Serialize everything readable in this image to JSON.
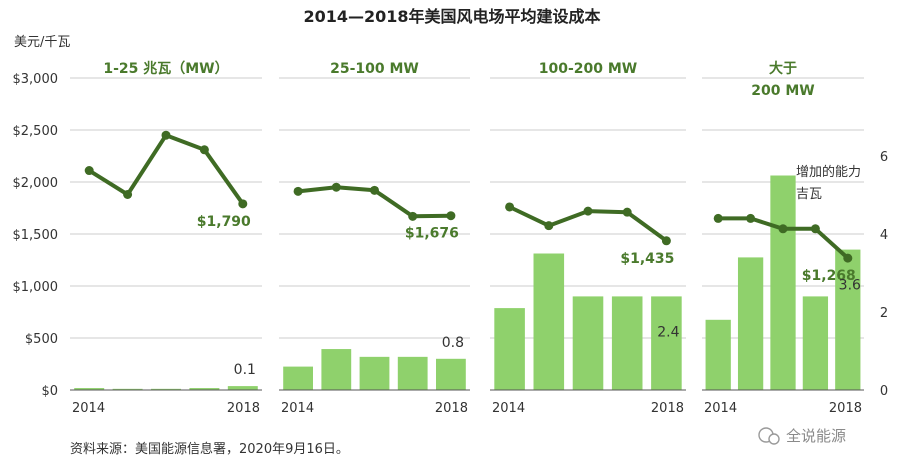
{
  "chart_data": {
    "type": "line",
    "title": "2014—2018年美国风电场平均建设成本",
    "ylabel": "美元/千瓦",
    "y2label": [
      "增加的能力",
      "吉瓦"
    ],
    "source": "资料来源：美国能源信息署，2020年9月16日。",
    "watermark": "全说能源",
    "ylim": [
      0,
      3000
    ],
    "y_ticks": [
      "$0",
      "$500",
      "$1,000",
      "$1,500",
      "$2,000",
      "$2,500",
      "$3,000"
    ],
    "y_tick_values": [
      0,
      500,
      1000,
      1500,
      2000,
      2500,
      3000
    ],
    "y2lim": [
      0,
      8
    ],
    "y2_ticks": [
      "0",
      "2",
      "4",
      "6"
    ],
    "y2_tick_values": [
      0,
      2,
      4,
      6
    ],
    "x": [
      2014,
      2015,
      2016,
      2017,
      2018
    ],
    "x_tick_labels": [
      "2014",
      "2018"
    ],
    "colors": {
      "line": "#3f6b24",
      "bar": "#8fd16c",
      "label": "#4a7a2c",
      "grid": "#cccccc"
    },
    "panels": [
      {
        "title_lines": [
          "1-25 兆瓦（MW）"
        ],
        "cost": [
          2110,
          1880,
          2450,
          2310,
          1790
        ],
        "capacity": [
          0.05,
          0.03,
          0.03,
          0.05,
          0.1
        ],
        "cost_label": "$1,790",
        "capacity_label": "0.1"
      },
      {
        "title_lines": [
          "25-100 MW"
        ],
        "cost": [
          1910,
          1950,
          1920,
          1670,
          1676
        ],
        "capacity": [
          0.6,
          1.05,
          0.85,
          0.85,
          0.8
        ],
        "cost_label": "$1,676",
        "capacity_label": "0.8"
      },
      {
        "title_lines": [
          "100-200 MW"
        ],
        "cost": [
          1760,
          1580,
          1720,
          1710,
          1435
        ],
        "capacity": [
          2.1,
          3.5,
          2.4,
          2.4,
          2.4
        ],
        "cost_label": "$1,435",
        "capacity_label": "2.4"
      },
      {
        "title_lines": [
          "大于",
          "200 MW"
        ],
        "cost": [
          1650,
          1650,
          1550,
          1550,
          1268
        ],
        "capacity": [
          1.8,
          3.4,
          5.5,
          2.4,
          3.6
        ],
        "cost_label": "$1,268",
        "capacity_label": "3.6"
      }
    ]
  }
}
